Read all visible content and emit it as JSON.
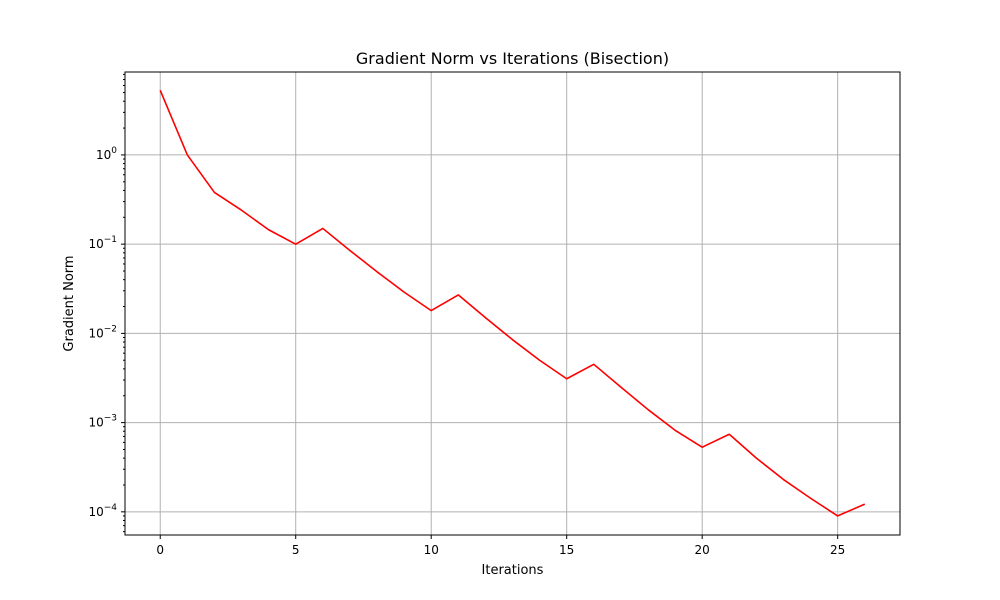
{
  "chart_data": {
    "type": "line",
    "title": "Gradient Norm vs Iterations (Bisection)",
    "xlabel": "Iterations",
    "ylabel": "Gradient Norm",
    "yscale": "log",
    "xlim": [
      -1.3,
      27.3
    ],
    "ylim": [
      5.5e-05,
      8.5
    ],
    "xticks": [
      0,
      5,
      10,
      15,
      20,
      25
    ],
    "yticks": [
      {
        "value": 0.0001,
        "base": "10",
        "exp": "−4"
      },
      {
        "value": 0.001,
        "base": "10",
        "exp": "−3"
      },
      {
        "value": 0.01,
        "base": "10",
        "exp": "−2"
      },
      {
        "value": 0.1,
        "base": "10",
        "exp": "−1"
      },
      {
        "value": 1,
        "base": "10",
        "exp": "0"
      }
    ],
    "grid": true,
    "series": [
      {
        "color": "#ff0000",
        "x": [
          0,
          1,
          2,
          3,
          4,
          5,
          6,
          7,
          8,
          9,
          10,
          11,
          12,
          13,
          14,
          15,
          16,
          17,
          18,
          19,
          20,
          21,
          22,
          23,
          24,
          25,
          26
        ],
        "y": [
          5.3,
          1.0,
          0.38,
          0.24,
          0.145,
          0.1,
          0.15,
          0.085,
          0.049,
          0.029,
          0.018,
          0.027,
          0.015,
          0.0085,
          0.005,
          0.0031,
          0.0045,
          0.0025,
          0.0014,
          0.00082,
          0.00053,
          0.00074,
          0.0004,
          0.00023,
          0.000142,
          9e-05,
          0.000122
        ]
      }
    ]
  }
}
